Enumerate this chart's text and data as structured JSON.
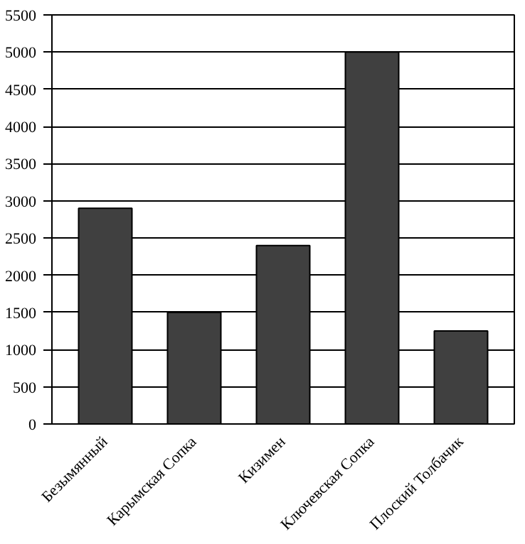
{
  "chart_data": {
    "type": "bar",
    "categories": [
      "Безымянный",
      "Карымская Сопка",
      "Кизимен",
      "Ключевская Сопка",
      "Плоский Толбачик"
    ],
    "values": [
      2900,
      1500,
      2400,
      5000,
      1250
    ],
    "color": "#404040",
    "ylim": [
      0,
      5500
    ],
    "yticks": [
      0,
      500,
      1000,
      1500,
      2000,
      2500,
      3000,
      3500,
      4000,
      4500,
      5000,
      5500
    ],
    "grid": "y"
  }
}
